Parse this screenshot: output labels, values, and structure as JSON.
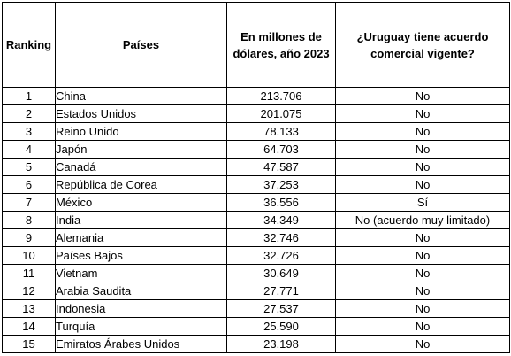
{
  "header": {
    "ranking": "Ranking",
    "countries": "Países",
    "value": "En millones de dólares, año 2023",
    "agreement": "¿Uruguay tiene acuerdo comercial vigente?"
  },
  "rows": [
    {
      "rank": "1",
      "country": "China",
      "value": "213.706",
      "agreement": "No"
    },
    {
      "rank": "2",
      "country": "Estados Unidos",
      "value": "201.075",
      "agreement": "No"
    },
    {
      "rank": "3",
      "country": "Reino Unido",
      "value": "78.133",
      "agreement": "No"
    },
    {
      "rank": "4",
      "country": "Japón",
      "value": "64.703",
      "agreement": "No"
    },
    {
      "rank": "5",
      "country": "Canadá",
      "value": "47.587",
      "agreement": "No"
    },
    {
      "rank": "6",
      "country": "República de Corea",
      "value": "37.253",
      "agreement": "No"
    },
    {
      "rank": "7",
      "country": "México",
      "value": "36.556",
      "agreement": "Sí"
    },
    {
      "rank": "8",
      "country": "India",
      "value": "34.349",
      "agreement": "No (acuerdo muy limitado)"
    },
    {
      "rank": "9",
      "country": "Alemania",
      "value": "32.746",
      "agreement": "No"
    },
    {
      "rank": "10",
      "country": "Países Bajos",
      "value": "32.726",
      "agreement": "No"
    },
    {
      "rank": "11",
      "country": "Vietnam",
      "value": "30.649",
      "agreement": "No"
    },
    {
      "rank": "12",
      "country": "Arabia Saudita",
      "value": "27.771",
      "agreement": "No"
    },
    {
      "rank": "13",
      "country": "Indonesia",
      "value": "27.537",
      "agreement": "No"
    },
    {
      "rank": "14",
      "country": "Turquía",
      "value": "25.590",
      "agreement": "No"
    },
    {
      "rank": "15",
      "country": "Emiratos Árabes Unidos",
      "value": "23.198",
      "agreement": "No"
    }
  ]
}
